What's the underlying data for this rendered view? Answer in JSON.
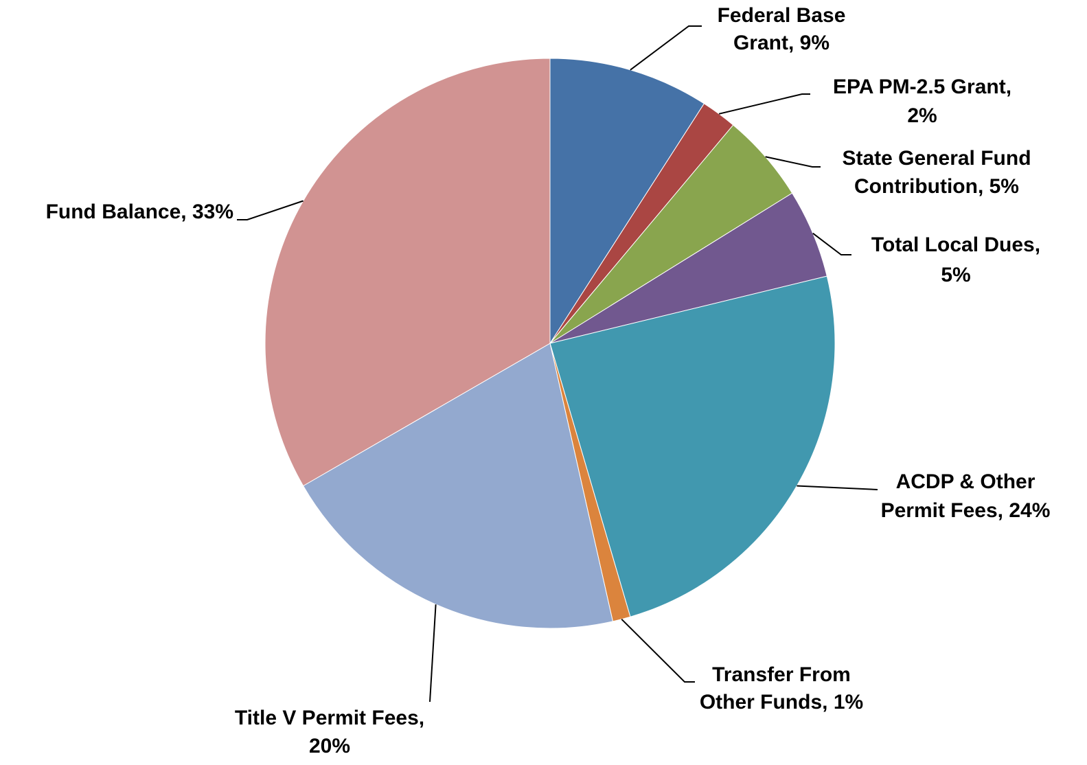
{
  "chart_data": {
    "type": "pie",
    "categories": [
      [
        "Federal Base",
        "Grant, 9%"
      ],
      [
        "EPA PM-2.5 Grant,",
        "2%"
      ],
      [
        "State General Fund",
        "Contribution, 5%"
      ],
      [
        "Total Local Dues,",
        "5%"
      ],
      [
        "ACDP & Other",
        "Permit Fees, 24%"
      ],
      [
        "Transfer From",
        "Other Funds, 1%"
      ],
      [
        "Title V Permit Fees,",
        "20%"
      ],
      [
        "Fund Balance, 33%"
      ]
    ],
    "values": [
      9,
      2,
      5,
      5,
      24,
      1,
      20,
      33
    ],
    "colors": [
      "#4572a7",
      "#aa4643",
      "#89a54e",
      "#71588f",
      "#4198af",
      "#db843d",
      "#93a9cf",
      "#d19392"
    ]
  }
}
